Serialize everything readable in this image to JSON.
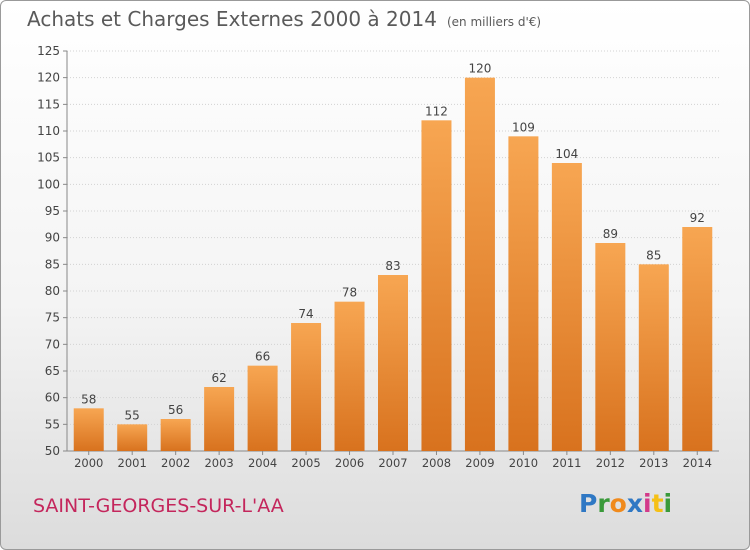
{
  "title": "Achats et Charges Externes 2000 à 2014",
  "unit": "(en milliers d'€)",
  "commune": "SAINT-GEORGES-SUR-L'AA",
  "logo": "Proxiti",
  "colors": {
    "bar_top": "#f7a652",
    "bar_bottom": "#d8721e",
    "commune": "#c4265c",
    "text": "#5a5a5a"
  },
  "chart_data": {
    "type": "bar",
    "title": "Achats et Charges Externes 2000 à 2014",
    "subtitle": "(en milliers d'€)",
    "categories": [
      "2000",
      "2001",
      "2002",
      "2003",
      "2004",
      "2005",
      "2006",
      "2007",
      "2008",
      "2009",
      "2010",
      "2011",
      "2012",
      "2013",
      "2014"
    ],
    "values": [
      58,
      55,
      56,
      62,
      66,
      74,
      78,
      83,
      112,
      120,
      109,
      104,
      89,
      85,
      92
    ],
    "ylim": [
      50,
      125
    ],
    "yticks": [
      50,
      55,
      60,
      65,
      70,
      75,
      80,
      85,
      90,
      95,
      100,
      105,
      110,
      115,
      120,
      125
    ],
    "grid": true,
    "xlabel": "",
    "ylabel": ""
  }
}
